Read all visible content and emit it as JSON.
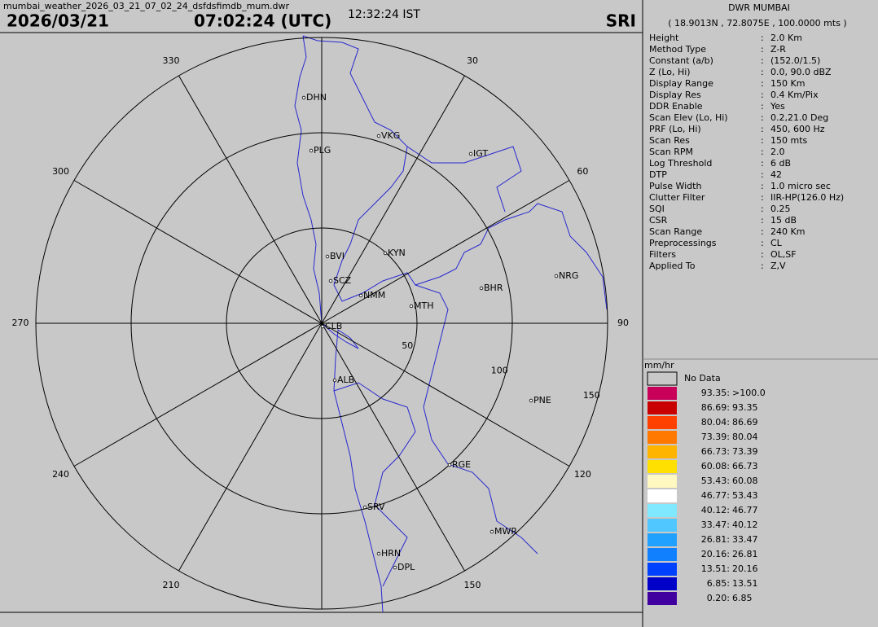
{
  "header": {
    "filename": "mumbai_weather_2026_03_21_07_02_24_dsfdsfimdb_mum.dwr",
    "date": "2026/03/21",
    "utc_time": "07:02:24 (UTC)",
    "ist_time": "12:32:24 IST",
    "product": "SRI"
  },
  "radar": {
    "azimuth_labels": [
      330,
      30,
      300,
      60,
      270,
      90,
      240,
      120,
      210,
      150
    ],
    "range_labels": [
      50,
      100,
      150
    ],
    "stations": [
      "DHN",
      "PLG",
      "VKG",
      "IGT",
      "KYN",
      "BVI",
      "SCZ",
      "NMM",
      "MTH",
      "BHR",
      "NRG",
      "CLB",
      "ALB",
      "PNE",
      "RGE",
      "SRV",
      "MWR",
      "HRN",
      "DPL"
    ]
  },
  "info": {
    "title": "DWR MUMBAI",
    "location": "( 18.9013N , 72.8075E , 100.0000 mts )",
    "parameters": [
      {
        "label": "Height",
        "sep": ":",
        "value": "2.0 Km"
      },
      {
        "label": "Method Type",
        "sep": ":",
        "value": "Z-R"
      },
      {
        "label": "Constant (a/b)",
        "sep": ":",
        "value": "(152.0/1.5)"
      },
      {
        "label": "Z (Lo, Hi)",
        "sep": ":",
        "value": "0.0, 90.0 dBZ"
      },
      {
        "label": "Display Range",
        "sep": ":",
        "value": "150 Km"
      },
      {
        "label": "Display Res",
        "sep": ":",
        "value": "0.4 Km/Pix"
      },
      {
        "label": "DDR Enable",
        "sep": ":",
        "value": "Yes"
      },
      {
        "label": "Scan Elev (Lo, Hi)",
        "sep": ":",
        "value": "0.2,21.0 Deg"
      },
      {
        "label": "PRF (Lo, Hi)",
        "sep": ":",
        "value": "450, 600 Hz"
      },
      {
        "label": "Scan Res",
        "sep": ":",
        "value": "150 mts"
      },
      {
        "label": "Scan RPM",
        "sep": ":",
        "value": "2.0"
      },
      {
        "label": "Log Threshold",
        "sep": ":",
        "value": "6 dB"
      },
      {
        "label": "DTP",
        "sep": ":",
        "value": "42"
      },
      {
        "label": "Pulse Width",
        "sep": ":",
        "value": "1.0 micro sec"
      },
      {
        "label": "Clutter Filter",
        "sep": ":",
        "value": "IIR-HP(126.0 Hz)"
      },
      {
        "label": "SQI",
        "sep": ":",
        "value": "0.25"
      },
      {
        "label": "CSR",
        "sep": ":",
        "value": "15 dB"
      },
      {
        "label": "Scan Range",
        "sep": ":",
        "value": "240 Km"
      },
      {
        "label": "Preprocessings",
        "sep": ":",
        "value": "CL"
      },
      {
        "label": "Filters",
        "sep": ":",
        "value": "OL,SF"
      },
      {
        "label": "Applied To",
        "sep": ":",
        "value": "Z,V"
      }
    ]
  },
  "legend": {
    "unit": "mm/hr",
    "no_data": "No Data",
    "no_data_color": "#c8c8c8",
    "items": [
      {
        "from": "93.35:",
        "to": ">100.0",
        "color": "#c8005a"
      },
      {
        "from": "86.69:",
        "to": "93.35",
        "color": "#c80000"
      },
      {
        "from": "80.04:",
        "to": "86.69",
        "color": "#ff4000"
      },
      {
        "from": "73.39:",
        "to": "80.04",
        "color": "#ff7800"
      },
      {
        "from": "66.73:",
        "to": "73.39",
        "color": "#ffb400"
      },
      {
        "from": "60.08:",
        "to": "66.73",
        "color": "#ffe000"
      },
      {
        "from": "53.43:",
        "to": "60.08",
        "color": "#fff8c0"
      },
      {
        "from": "46.77:",
        "to": "53.43",
        "color": "#ffffff"
      },
      {
        "from": "40.12:",
        "to": "46.77",
        "color": "#80e8ff"
      },
      {
        "from": "33.47:",
        "to": "40.12",
        "color": "#50c8ff"
      },
      {
        "from": "26.81:",
        "to": "33.47",
        "color": "#20a0ff"
      },
      {
        "from": "20.16:",
        "to": "26.81",
        "color": "#1080ff"
      },
      {
        "from": "13.51:",
        "to": "20.16",
        "color": "#0040ff"
      },
      {
        "from": "6.85:",
        "to": "13.51",
        "color": "#0000c8"
      },
      {
        "from": "0.20:",
        "to": "6.85",
        "color": "#4000a0"
      }
    ]
  }
}
